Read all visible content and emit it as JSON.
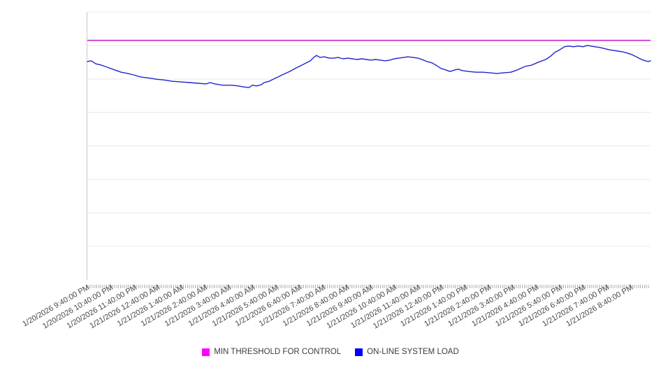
{
  "chart_data": {
    "type": "line",
    "title": "",
    "grid": true,
    "legend_position": "bottom-center",
    "x_axis": {
      "categories": [
        "1/20/2026 9:40:00 PM",
        "1/20/2026 10:40:00 PM",
        "1/20/2026 11:40:00 PM",
        "1/21/2026 12:40:00 AM",
        "1/21/2026 1:40:00 AM",
        "1/21/2026 2:40:00 AM",
        "1/21/2026 3:40:00 AM",
        "1/21/2026 4:40:00 AM",
        "1/21/2026 5:40:00 AM",
        "1/21/2026 6:40:00 AM",
        "1/21/2026 7:40:00 AM",
        "1/21/2026 8:40:00 AM",
        "1/21/2026 9:40:00 AM",
        "1/21/2026 10:40:00 AM",
        "1/21/2026 11:40:00 AM",
        "1/21/2026 12:40:00 PM",
        "1/21/2026 1:40:00 PM",
        "1/21/2026 2:40:00 PM",
        "1/21/2026 3:40:00 PM",
        "1/21/2026 4:40:00 PM",
        "1/21/2026 5:40:00 PM",
        "1/21/2026 6:40:00 PM",
        "1/21/2026 7:40:00 PM",
        "1/21/2026 8:40:00 PM"
      ],
      "label_rotation_deg": -30,
      "minor_ticks_per_hour": 12
    },
    "y_axis": {
      "labels_visible": false,
      "ylim": [
        0,
        8
      ],
      "gridline_interval": 1,
      "gridline_count": 8
    },
    "series": [
      {
        "name": "MIN THRESHOLD FOR CONTROL",
        "kind": "threshold",
        "line_color": "#c926c9",
        "legend_color": "#ff00ff",
        "value": 7.15
      },
      {
        "name": "ON-LINE SYSTEM LOAD",
        "kind": "line",
        "line_color": "#2323ce",
        "legend_color": "#0000ff",
        "points": [
          [
            0.0,
            6.52
          ],
          [
            0.007,
            6.54
          ],
          [
            0.015,
            6.45
          ],
          [
            0.025,
            6.41
          ],
          [
            0.035,
            6.35
          ],
          [
            0.048,
            6.27
          ],
          [
            0.06,
            6.2
          ],
          [
            0.072,
            6.16
          ],
          [
            0.082,
            6.12
          ],
          [
            0.094,
            6.06
          ],
          [
            0.112,
            6.02
          ],
          [
            0.122,
            5.99
          ],
          [
            0.135,
            5.97
          ],
          [
            0.15,
            5.93
          ],
          [
            0.166,
            5.91
          ],
          [
            0.181,
            5.89
          ],
          [
            0.196,
            5.87
          ],
          [
            0.211,
            5.85
          ],
          [
            0.218,
            5.89
          ],
          [
            0.226,
            5.85
          ],
          [
            0.241,
            5.81
          ],
          [
            0.256,
            5.81
          ],
          [
            0.268,
            5.79
          ],
          [
            0.277,
            5.76
          ],
          [
            0.287,
            5.74
          ],
          [
            0.293,
            5.81
          ],
          [
            0.301,
            5.79
          ],
          [
            0.309,
            5.83
          ],
          [
            0.314,
            5.89
          ],
          [
            0.323,
            5.93
          ],
          [
            0.33,
            5.99
          ],
          [
            0.339,
            6.06
          ],
          [
            0.346,
            6.12
          ],
          [
            0.359,
            6.22
          ],
          [
            0.371,
            6.33
          ],
          [
            0.383,
            6.43
          ],
          [
            0.396,
            6.54
          ],
          [
            0.402,
            6.64
          ],
          [
            0.407,
            6.7
          ],
          [
            0.413,
            6.64
          ],
          [
            0.421,
            6.66
          ],
          [
            0.429,
            6.62
          ],
          [
            0.438,
            6.62
          ],
          [
            0.445,
            6.64
          ],
          [
            0.454,
            6.6
          ],
          [
            0.463,
            6.62
          ],
          [
            0.47,
            6.6
          ],
          [
            0.479,
            6.58
          ],
          [
            0.488,
            6.6
          ],
          [
            0.495,
            6.58
          ],
          [
            0.504,
            6.56
          ],
          [
            0.512,
            6.58
          ],
          [
            0.52,
            6.56
          ],
          [
            0.529,
            6.54
          ],
          [
            0.537,
            6.56
          ],
          [
            0.545,
            6.6
          ],
          [
            0.553,
            6.62
          ],
          [
            0.562,
            6.64
          ],
          [
            0.569,
            6.66
          ],
          [
            0.578,
            6.64
          ],
          [
            0.587,
            6.62
          ],
          [
            0.594,
            6.58
          ],
          [
            0.603,
            6.52
          ],
          [
            0.612,
            6.48
          ],
          [
            0.619,
            6.41
          ],
          [
            0.628,
            6.31
          ],
          [
            0.636,
            6.27
          ],
          [
            0.644,
            6.22
          ],
          [
            0.653,
            6.27
          ],
          [
            0.659,
            6.29
          ],
          [
            0.665,
            6.25
          ],
          [
            0.677,
            6.22
          ],
          [
            0.69,
            6.2
          ],
          [
            0.702,
            6.2
          ],
          [
            0.715,
            6.18
          ],
          [
            0.727,
            6.16
          ],
          [
            0.739,
            6.18
          ],
          [
            0.752,
            6.2
          ],
          [
            0.764,
            6.27
          ],
          [
            0.777,
            6.37
          ],
          [
            0.789,
            6.41
          ],
          [
            0.801,
            6.5
          ],
          [
            0.814,
            6.58
          ],
          [
            0.823,
            6.68
          ],
          [
            0.83,
            6.79
          ],
          [
            0.839,
            6.87
          ],
          [
            0.847,
            6.96
          ],
          [
            0.855,
            6.98
          ],
          [
            0.863,
            6.96
          ],
          [
            0.872,
            6.98
          ],
          [
            0.88,
            6.96
          ],
          [
            0.888,
            7.0
          ],
          [
            0.894,
            6.98
          ],
          [
            0.901,
            6.96
          ],
          [
            0.909,
            6.94
          ],
          [
            0.917,
            6.91
          ],
          [
            0.926,
            6.87
          ],
          [
            0.934,
            6.85
          ],
          [
            0.942,
            6.83
          ],
          [
            0.95,
            6.81
          ],
          [
            0.959,
            6.77
          ],
          [
            0.966,
            6.73
          ],
          [
            0.975,
            6.66
          ],
          [
            0.984,
            6.58
          ],
          [
            0.991,
            6.54
          ],
          [
            0.996,
            6.52
          ],
          [
            1.0,
            6.54
          ]
        ]
      }
    ]
  },
  "legend": {
    "items": [
      {
        "label": "MIN THRESHOLD FOR CONTROL",
        "color": "#ff00ff"
      },
      {
        "label": "ON-LINE SYSTEM LOAD",
        "color": "#0000ff"
      }
    ]
  },
  "colors": {
    "gridline": "#e8e8e8",
    "axis_border": "#c9c9c9",
    "minor_tick": "#b0b0b0",
    "axis_label_text": "#474747"
  }
}
